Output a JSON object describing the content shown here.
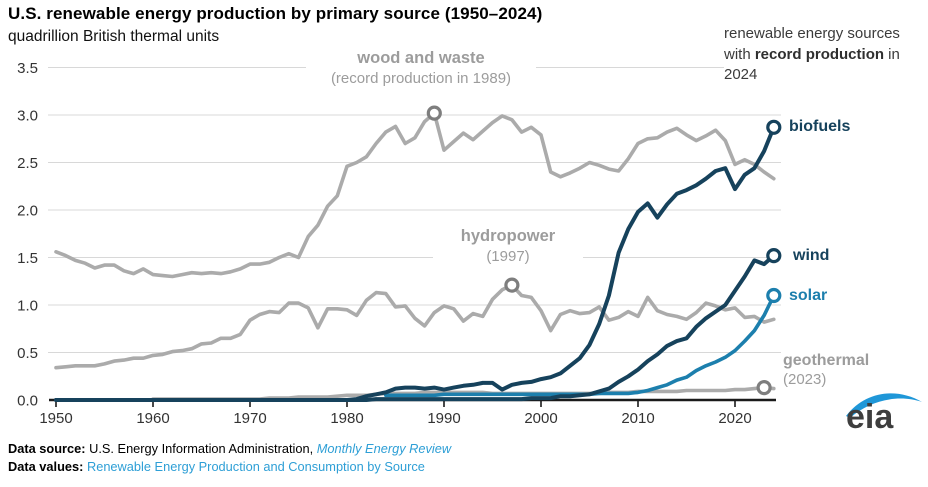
{
  "header": {
    "title": "U.S. renewable energy production by primary source (1950–2024)",
    "subtitle": "quadrillion British thermal units"
  },
  "annotation": {
    "pre": "renewable energy sources with ",
    "bold": "record production",
    "post": " in 2024"
  },
  "labels": {
    "wood": {
      "title": "wood and waste",
      "sub": "(record production in 1989)"
    },
    "hydro": {
      "title": "hydropower",
      "sub": "(1997)"
    },
    "geothermal": {
      "title": "geothermal",
      "sub": "(2023)"
    },
    "biofuels": "biofuels",
    "wind": "wind",
    "solar": "solar"
  },
  "footer": {
    "line1": {
      "label": "Data source:",
      "text": " U.S. Energy Information Administration, ",
      "link": "Monthly Energy Review"
    },
    "line2": {
      "label": "Data values:",
      "link": " Renewable Energy Production and Consumption by Source"
    }
  },
  "logo": {
    "text": "eia"
  },
  "colors": {
    "navy": "#16425c",
    "solar_blue": "#1c7fad",
    "gray_line": "#ababab",
    "gray_marker": "#7e7e7e",
    "gridline": "#d8d8d8",
    "axis": "#1a1a1a",
    "link_blue": "#2e9fd6"
  },
  "chart_data": {
    "type": "line",
    "title": "U.S. renewable energy production by primary source (1950–2024)",
    "ylabel": "quadrillion British thermal units",
    "xlabel": "",
    "x_start": 1950,
    "x_end": 2024,
    "xlim": [
      1950,
      2024
    ],
    "ylim": [
      0,
      3.5
    ],
    "x_ticks": [
      1950,
      1960,
      1970,
      1980,
      1990,
      2000,
      2010,
      2020
    ],
    "y_ticks": [
      0.0,
      0.5,
      1.0,
      1.5,
      2.0,
      2.5,
      3.0,
      3.5
    ],
    "grid": "horizontal",
    "legend_position": "end-of-line labels",
    "series": [
      {
        "id": "wood-and-waste",
        "name": "wood and waste",
        "record_note": "record production in 1989",
        "color": "#ababab",
        "width": 3.6,
        "marker": {
          "year": 1989,
          "value": 3.02
        },
        "marker_color": "#7e7e7e",
        "values": [
          1.56,
          1.52,
          1.47,
          1.44,
          1.39,
          1.42,
          1.42,
          1.36,
          1.33,
          1.38,
          1.32,
          1.31,
          1.3,
          1.32,
          1.34,
          1.33,
          1.34,
          1.33,
          1.35,
          1.38,
          1.43,
          1.43,
          1.45,
          1.5,
          1.54,
          1.5,
          1.72,
          1.84,
          2.04,
          2.15,
          2.46,
          2.5,
          2.56,
          2.7,
          2.82,
          2.88,
          2.7,
          2.76,
          2.93,
          3.02,
          2.63,
          2.72,
          2.81,
          2.74,
          2.83,
          2.92,
          2.99,
          2.95,
          2.82,
          2.87,
          2.79,
          2.4,
          2.35,
          2.39,
          2.44,
          2.5,
          2.47,
          2.43,
          2.41,
          2.54,
          2.7,
          2.75,
          2.76,
          2.82,
          2.86,
          2.79,
          2.73,
          2.78,
          2.84,
          2.73,
          2.48,
          2.53,
          2.48,
          2.4,
          2.33
        ]
      },
      {
        "id": "hydropower",
        "name": "hydropower",
        "record_note": "1997",
        "color": "#ababab",
        "width": 3.6,
        "marker": {
          "year": 1997,
          "value": 1.21
        },
        "marker_color": "#7e7e7e",
        "values": [
          0.34,
          0.35,
          0.36,
          0.36,
          0.36,
          0.38,
          0.41,
          0.42,
          0.44,
          0.44,
          0.47,
          0.48,
          0.51,
          0.52,
          0.54,
          0.59,
          0.6,
          0.65,
          0.65,
          0.69,
          0.84,
          0.9,
          0.93,
          0.92,
          1.02,
          1.02,
          0.97,
          0.76,
          0.96,
          0.96,
          0.95,
          0.89,
          1.05,
          1.13,
          1.12,
          0.98,
          0.99,
          0.86,
          0.78,
          0.92,
          0.99,
          0.96,
          0.83,
          0.91,
          0.88,
          1.06,
          1.16,
          1.21,
          1.1,
          1.08,
          0.94,
          0.73,
          0.9,
          0.94,
          0.91,
          0.92,
          0.98,
          0.84,
          0.87,
          0.93,
          0.88,
          1.08,
          0.94,
          0.9,
          0.88,
          0.85,
          0.92,
          1.02,
          0.99,
          0.95,
          0.97,
          0.87,
          0.88,
          0.82,
          0.85
        ]
      },
      {
        "id": "geothermal",
        "name": "geothermal",
        "record_note": "2023",
        "color": "#ababab",
        "width": 3.6,
        "marker": {
          "year": 2023,
          "value": 0.13
        },
        "marker_color": "#7e7e7e",
        "values": [
          null,
          null,
          null,
          null,
          null,
          null,
          null,
          null,
          null,
          null,
          0.01,
          0.01,
          0.01,
          0.01,
          0.01,
          0.01,
          0.01,
          0.01,
          0.01,
          0.01,
          0.01,
          0.01,
          0.02,
          0.02,
          0.02,
          0.03,
          0.03,
          0.03,
          0.03,
          0.04,
          0.05,
          0.05,
          0.05,
          0.06,
          0.07,
          0.07,
          0.07,
          0.07,
          0.08,
          0.08,
          0.08,
          0.08,
          0.08,
          0.08,
          0.08,
          0.07,
          0.07,
          0.07,
          0.07,
          0.07,
          0.07,
          0.07,
          0.07,
          0.07,
          0.07,
          0.07,
          0.07,
          0.08,
          0.08,
          0.08,
          0.09,
          0.09,
          0.09,
          0.09,
          0.09,
          0.1,
          0.1,
          0.1,
          0.1,
          0.1,
          0.11,
          0.11,
          0.12,
          0.13,
          0.12
        ]
      },
      {
        "id": "solar",
        "name": "solar",
        "record_note": "record production in 2024",
        "color": "#1c7fad",
        "width": 3.6,
        "marker": {
          "year": 2024,
          "value": 1.1
        },
        "marker_color": "#1c7fad",
        "values": [
          null,
          null,
          null,
          null,
          null,
          null,
          null,
          null,
          null,
          null,
          null,
          null,
          null,
          null,
          null,
          null,
          null,
          null,
          null,
          null,
          null,
          null,
          null,
          null,
          null,
          null,
          null,
          null,
          null,
          null,
          null,
          null,
          null,
          null,
          0.05,
          0.05,
          0.05,
          0.05,
          0.05,
          0.05,
          0.06,
          0.06,
          0.06,
          0.06,
          0.06,
          0.06,
          0.06,
          0.06,
          0.06,
          0.06,
          0.06,
          0.06,
          0.06,
          0.06,
          0.06,
          0.06,
          0.07,
          0.07,
          0.07,
          0.07,
          0.08,
          0.1,
          0.13,
          0.16,
          0.21,
          0.24,
          0.31,
          0.36,
          0.4,
          0.45,
          0.52,
          0.62,
          0.73,
          0.89,
          1.1
        ]
      },
      {
        "id": "wind",
        "name": "wind",
        "record_note": "record production in 2024",
        "color": "#16425c",
        "width": 4,
        "marker": {
          "year": 2024,
          "value": 1.52
        },
        "marker_color": "#16425c",
        "values": [
          0,
          0,
          0,
          0,
          0,
          0,
          0,
          0,
          0,
          0,
          0,
          0,
          0,
          0,
          0,
          0,
          0,
          0,
          0,
          0,
          0,
          0,
          0,
          0,
          0,
          0,
          0,
          0,
          0,
          0,
          0,
          0,
          0,
          0.01,
          0.01,
          0.01,
          0.01,
          0.01,
          0.01,
          0.01,
          0.01,
          0.01,
          0.01,
          0.01,
          0.01,
          0.01,
          0.01,
          0.01,
          0.01,
          0.02,
          0.02,
          0.02,
          0.04,
          0.04,
          0.05,
          0.06,
          0.09,
          0.12,
          0.19,
          0.25,
          0.32,
          0.41,
          0.48,
          0.57,
          0.62,
          0.65,
          0.77,
          0.86,
          0.93,
          1.0,
          1.15,
          1.3,
          1.47,
          1.43,
          1.52
        ]
      },
      {
        "id": "biofuels",
        "name": "biofuels",
        "record_note": "record production in 2024",
        "color": "#16425c",
        "width": 4,
        "marker": {
          "year": 2024,
          "value": 2.87
        },
        "marker_color": "#16425c",
        "values": [
          0,
          0,
          0,
          0,
          0,
          0,
          0,
          0,
          0,
          0,
          0,
          0,
          0,
          0,
          0,
          0,
          0,
          0,
          0,
          0,
          0,
          0,
          0,
          0,
          0,
          0,
          0,
          0,
          0,
          0,
          0,
          0.01,
          0.04,
          0.06,
          0.08,
          0.12,
          0.13,
          0.13,
          0.12,
          0.13,
          0.11,
          0.13,
          0.15,
          0.16,
          0.18,
          0.18,
          0.11,
          0.16,
          0.18,
          0.19,
          0.22,
          0.24,
          0.28,
          0.36,
          0.44,
          0.58,
          0.8,
          1.1,
          1.55,
          1.8,
          1.98,
          2.07,
          1.92,
          2.06,
          2.17,
          2.21,
          2.26,
          2.33,
          2.41,
          2.44,
          2.22,
          2.37,
          2.44,
          2.62,
          2.87
        ]
      }
    ]
  }
}
